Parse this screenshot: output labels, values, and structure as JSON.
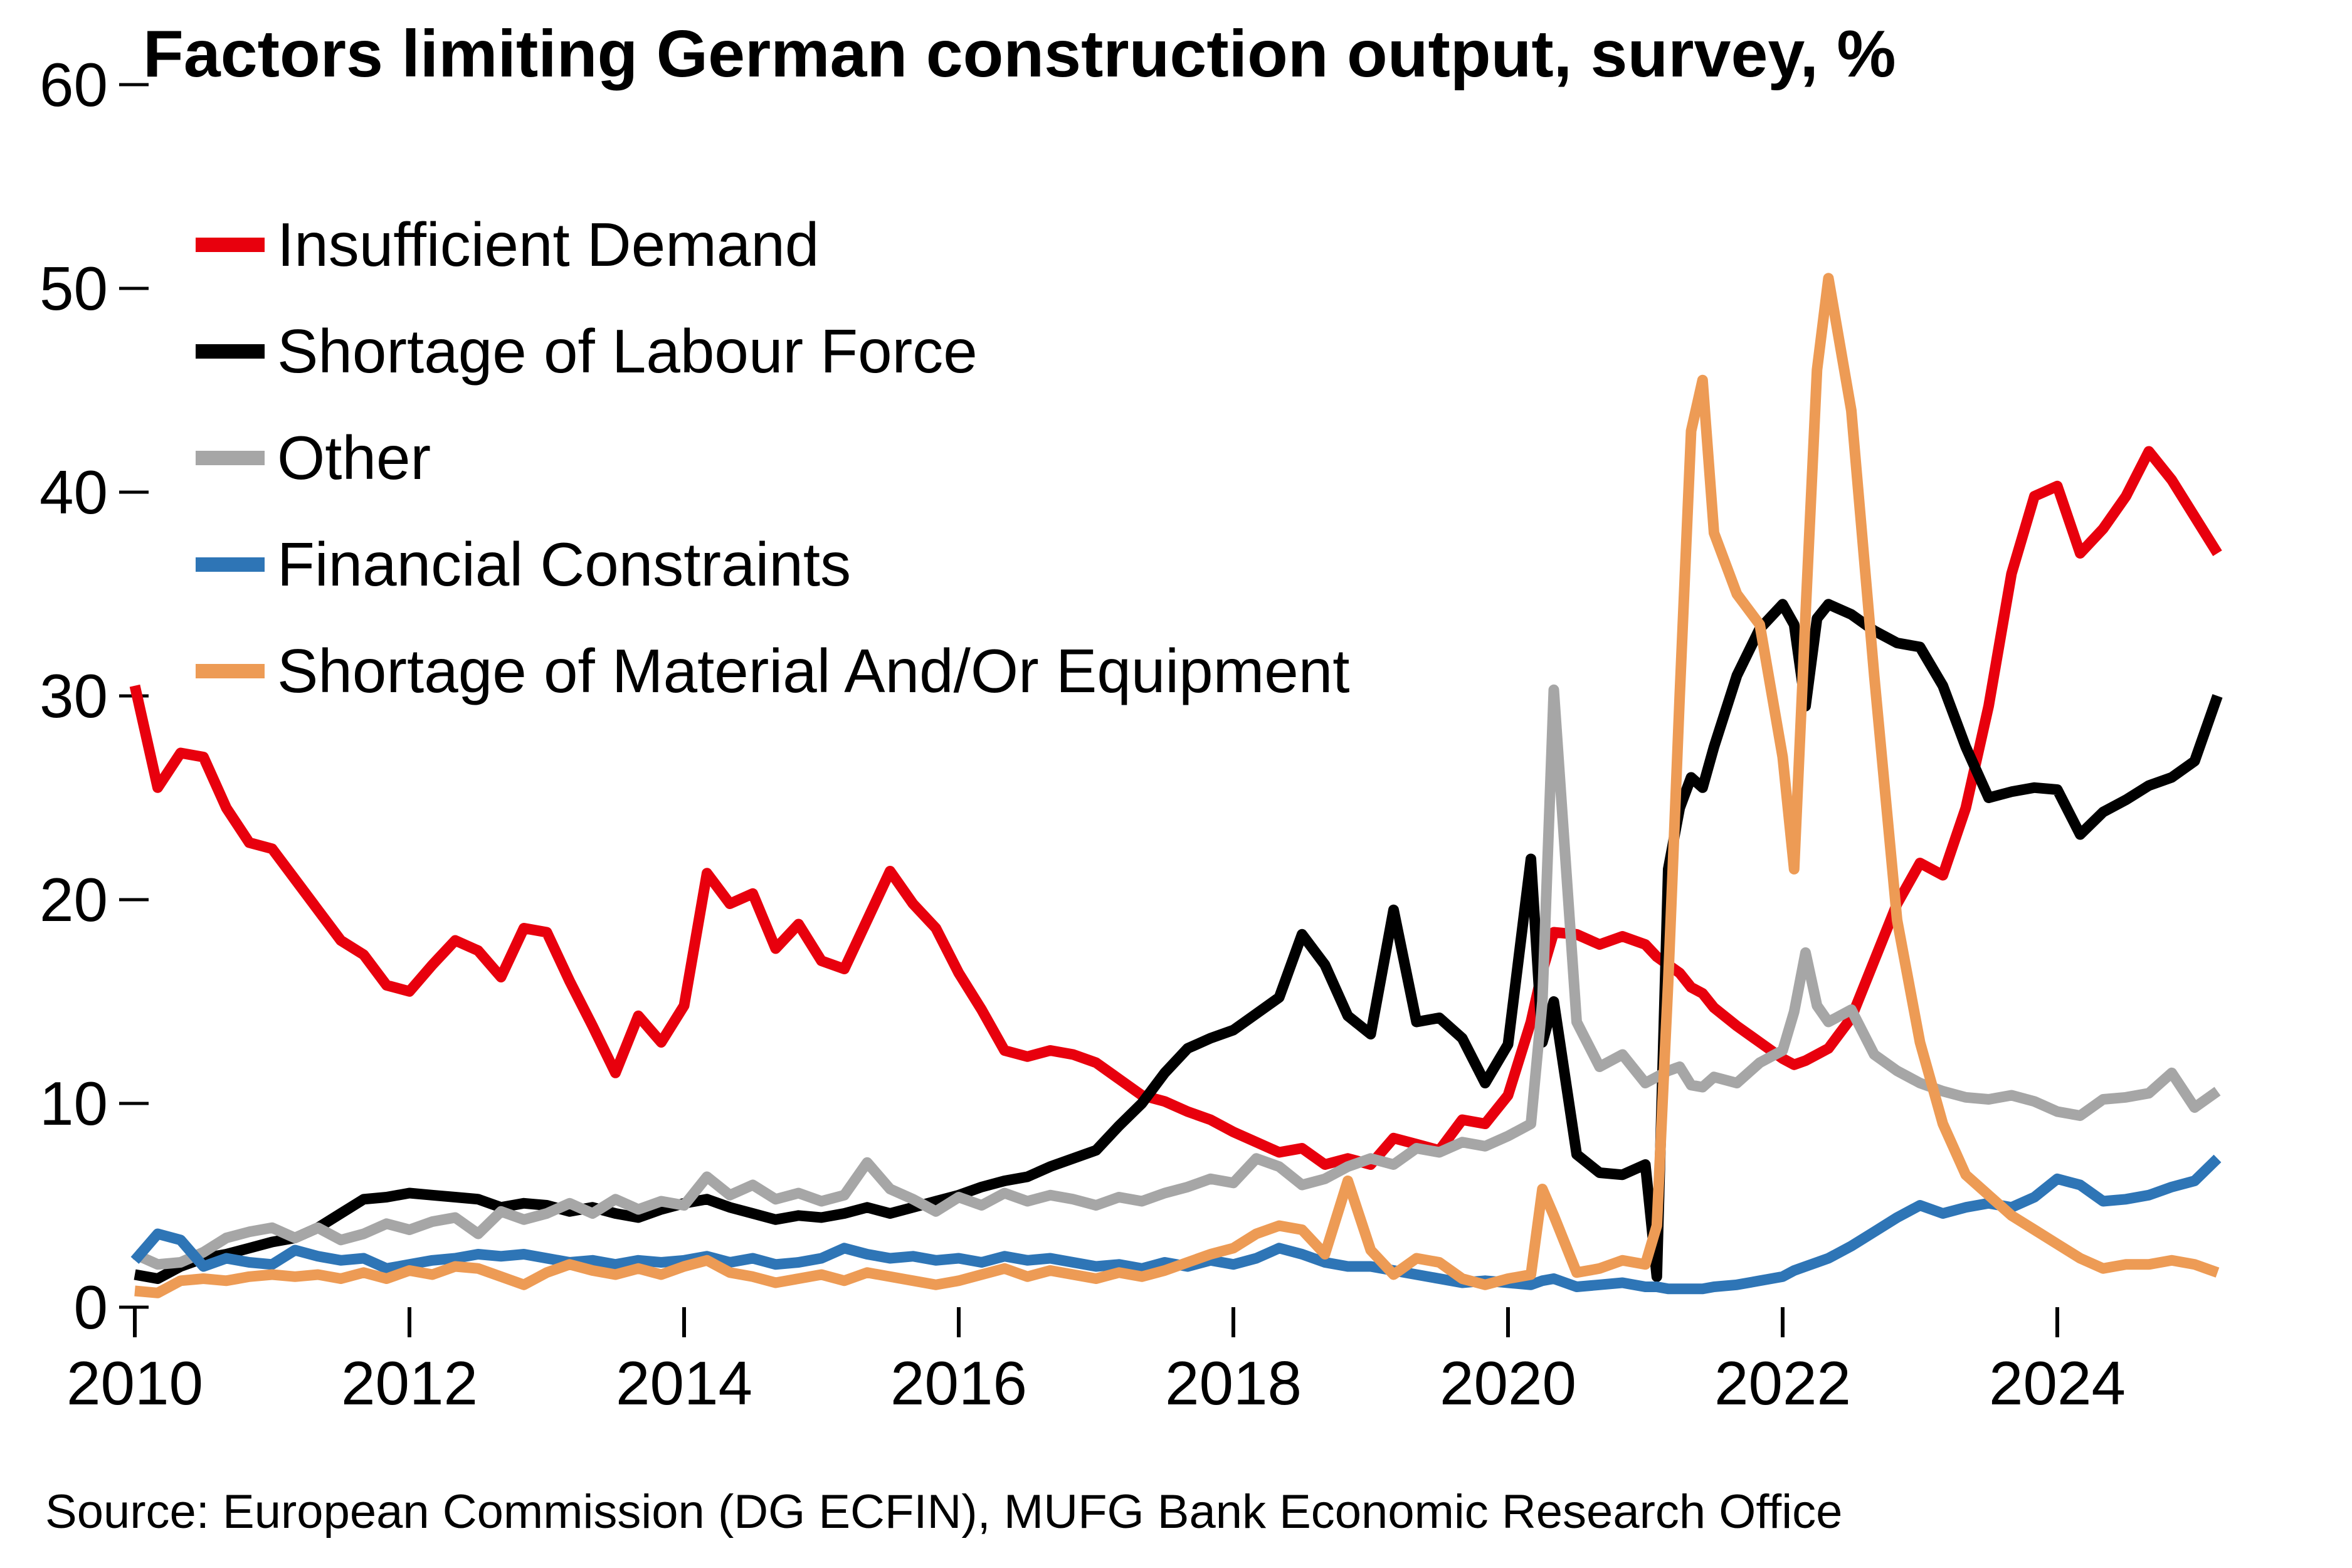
{
  "title": "Factors limiting German construction output, survey, %",
  "source": "Source: European Commission (DG ECFIN), MUFG Bank Economic Research Office",
  "chart_data": {
    "type": "line",
    "title": "Factors limiting German construction output, survey, %",
    "xlabel": "",
    "ylabel": "%",
    "ylim": [
      0,
      60
    ],
    "yticks": [
      0,
      10,
      20,
      30,
      40,
      50,
      60
    ],
    "xticks": [
      2010,
      2012,
      2014,
      2016,
      2018,
      2020,
      2022,
      2024
    ],
    "grid": false,
    "legend_position": "top-left",
    "x": [
      "2010-01",
      "2010-03",
      "2010-05",
      "2010-07",
      "2010-09",
      "2010-11",
      "2011-01",
      "2011-03",
      "2011-05",
      "2011-07",
      "2011-09",
      "2011-11",
      "2012-01",
      "2012-03",
      "2012-05",
      "2012-07",
      "2012-09",
      "2012-11",
      "2013-01",
      "2013-03",
      "2013-05",
      "2013-07",
      "2013-09",
      "2013-11",
      "2014-01",
      "2014-03",
      "2014-05",
      "2014-07",
      "2014-09",
      "2014-11",
      "2015-01",
      "2015-03",
      "2015-05",
      "2015-07",
      "2015-09",
      "2015-11",
      "2016-01",
      "2016-03",
      "2016-05",
      "2016-07",
      "2016-09",
      "2016-11",
      "2017-01",
      "2017-03",
      "2017-05",
      "2017-07",
      "2017-09",
      "2017-11",
      "2018-01",
      "2018-03",
      "2018-05",
      "2018-07",
      "2018-09",
      "2018-11",
      "2019-01",
      "2019-03",
      "2019-05",
      "2019-07",
      "2019-09",
      "2019-11",
      "2020-01",
      "2020-03",
      "2020-04",
      "2020-05",
      "2020-07",
      "2020-09",
      "2020-11",
      "2021-01",
      "2021-02",
      "2021-03",
      "2021-04",
      "2021-05",
      "2021-06",
      "2021-07",
      "2021-09",
      "2021-11",
      "2022-01",
      "2022-02",
      "2022-03",
      "2022-04",
      "2022-05",
      "2022-07",
      "2022-09",
      "2022-11",
      "2023-01",
      "2023-03",
      "2023-05",
      "2023-07",
      "2023-09",
      "2023-11",
      "2024-01",
      "2024-03",
      "2024-05",
      "2024-07",
      "2024-09",
      "2024-11",
      "2025-01",
      "2025-03"
    ],
    "series": [
      {
        "name": "Insufficient Demand",
        "color": "#e8000d",
        "values": [
          30.5,
          25.5,
          27.2,
          27,
          24.5,
          22.8,
          22.5,
          21,
          19.5,
          18,
          17.3,
          15.8,
          15.5,
          16.8,
          18,
          17.5,
          16.2,
          18.6,
          18.4,
          16,
          13.8,
          11.5,
          14.3,
          13,
          14.8,
          21.3,
          19.8,
          20.3,
          17.6,
          18.8,
          17,
          16.6,
          19,
          21.4,
          19.8,
          18.6,
          16.4,
          14.6,
          12.6,
          12.3,
          12.6,
          12.4,
          12,
          11.2,
          10.4,
          10.1,
          9.6,
          9.2,
          8.6,
          8.1,
          7.6,
          7.8,
          7,
          7.3,
          7,
          8.3,
          8,
          7.7,
          9.2,
          9,
          10.4,
          14,
          16.5,
          18.4,
          18.3,
          17.8,
          18.2,
          17.8,
          17.2,
          16.8,
          16.4,
          15.7,
          15.4,
          14.7,
          13.8,
          13,
          12.2,
          11.9,
          12.1,
          12.4,
          12.7,
          14.2,
          17,
          19.8,
          21.8,
          21.2,
          24.5,
          29.5,
          36,
          39.8,
          40.3,
          37,
          38.2,
          39.8,
          42,
          40.6,
          38.8,
          37
        ]
      },
      {
        "name": "Shortage of Labour Force",
        "color": "#000000",
        "values": [
          1.6,
          1.4,
          2,
          2.4,
          2.6,
          2.9,
          3.2,
          3.4,
          3.9,
          4.6,
          5.3,
          5.4,
          5.6,
          5.5,
          5.4,
          5.3,
          4.9,
          5.1,
          5,
          4.7,
          4.9,
          4.6,
          4.4,
          4.8,
          5.1,
          5.3,
          4.9,
          4.6,
          4.3,
          4.5,
          4.4,
          4.6,
          4.9,
          4.6,
          4.9,
          5.2,
          5.5,
          5.9,
          6.2,
          6.4,
          6.9,
          7.3,
          7.7,
          8.9,
          10,
          11.5,
          12.7,
          13.2,
          13.6,
          14.4,
          15.2,
          18.3,
          16.8,
          14.3,
          13.4,
          19.5,
          14,
          14.2,
          13.2,
          11,
          12.9,
          22,
          13,
          15,
          7.5,
          6.6,
          6.5,
          7,
          1.5,
          21.5,
          24.5,
          26,
          25.5,
          27.5,
          31,
          33.3,
          34.5,
          33.5,
          29.5,
          33.8,
          34.5,
          34,
          33.2,
          32.6,
          32.4,
          30.5,
          27.5,
          25,
          25.3,
          25.5,
          25.4,
          23.2,
          24.3,
          24.9,
          25.6,
          26,
          26.8,
          30
        ]
      },
      {
        "name": "Other",
        "color": "#a6a6a6",
        "values": [
          2.6,
          2.1,
          2.2,
          2.7,
          3.4,
          3.7,
          3.9,
          3.4,
          3.9,
          3.3,
          3.6,
          4.1,
          3.8,
          4.2,
          4.4,
          3.6,
          4.7,
          4.3,
          4.6,
          5.1,
          4.6,
          5.3,
          4.8,
          5.2,
          5,
          6.4,
          5.5,
          6,
          5.3,
          5.6,
          5.2,
          5.5,
          7.1,
          5.8,
          5.3,
          4.7,
          5.4,
          5,
          5.6,
          5.2,
          5.5,
          5.3,
          5,
          5.4,
          5.2,
          5.6,
          5.9,
          6.3,
          6.1,
          7.3,
          6.9,
          6,
          6.3,
          6.9,
          7.3,
          7,
          7.8,
          7.6,
          8.1,
          7.9,
          8.4,
          9,
          15,
          30.3,
          14,
          11.8,
          12.4,
          11,
          11.3,
          11.6,
          11.8,
          10.9,
          10.8,
          11.3,
          11,
          12,
          12.6,
          14.5,
          17.4,
          14.8,
          14,
          14.6,
          12.4,
          11.6,
          11,
          10.6,
          10.3,
          10.2,
          10.4,
          10.1,
          9.6,
          9.4,
          10.2,
          10.3,
          10.5,
          11.5,
          9.8,
          10.6
        ]
      },
      {
        "name": "Financial Constraints",
        "color": "#2e75b6",
        "values": [
          2.3,
          3.6,
          3.3,
          2,
          2.4,
          2.2,
          2.1,
          2.8,
          2.5,
          2.3,
          2.4,
          1.9,
          2.1,
          2.3,
          2.4,
          2.6,
          2.5,
          2.6,
          2.4,
          2.2,
          2.3,
          2.1,
          2.3,
          2.2,
          2.3,
          2.5,
          2.2,
          2.4,
          2.1,
          2.2,
          2.4,
          2.9,
          2.6,
          2.4,
          2.5,
          2.3,
          2.4,
          2.2,
          2.5,
          2.3,
          2.4,
          2.2,
          2,
          2.1,
          1.9,
          2.2,
          2,
          2.3,
          2.1,
          2.4,
          2.9,
          2.6,
          2.2,
          2,
          2,
          1.8,
          1.6,
          1.4,
          1.2,
          1.3,
          1.2,
          1.1,
          1.3,
          1.4,
          1,
          1.1,
          1.2,
          1,
          1,
          0.9,
          0.9,
          0.9,
          0.9,
          1,
          1.1,
          1.3,
          1.5,
          1.8,
          2,
          2.2,
          2.4,
          3,
          3.7,
          4.4,
          5,
          4.6,
          4.9,
          5.1,
          4.9,
          5.4,
          6.3,
          6,
          5.2,
          5.3,
          5.5,
          5.9,
          6.2,
          7.3
        ]
      },
      {
        "name": "Shortage of Material And/Or Equipment",
        "color": "#ed9b55",
        "values": [
          0.8,
          0.7,
          1.3,
          1.4,
          1.3,
          1.5,
          1.6,
          1.5,
          1.6,
          1.4,
          1.7,
          1.4,
          1.8,
          1.6,
          2,
          1.9,
          1.5,
          1.1,
          1.7,
          2.1,
          1.8,
          1.6,
          1.9,
          1.6,
          2,
          2.3,
          1.7,
          1.5,
          1.2,
          1.4,
          1.6,
          1.3,
          1.7,
          1.5,
          1.3,
          1.1,
          1.3,
          1.6,
          1.9,
          1.5,
          1.8,
          1.6,
          1.4,
          1.7,
          1.5,
          1.8,
          2.2,
          2.6,
          2.9,
          3.6,
          4,
          3.8,
          2.6,
          6.2,
          2.8,
          1.6,
          2.4,
          2.2,
          1.4,
          1.1,
          1.4,
          1.6,
          5.8,
          4.5,
          1.7,
          1.9,
          2.3,
          2.1,
          4,
          16,
          30,
          43,
          45.5,
          38,
          35,
          33.5,
          27,
          21.5,
          34,
          46,
          50.5,
          44,
          31,
          19,
          13,
          9,
          6.5,
          5.5,
          4.5,
          3.8,
          3.1,
          2.4,
          1.9,
          2.1,
          2.1,
          2.3,
          2.1,
          1.7
        ]
      }
    ]
  }
}
